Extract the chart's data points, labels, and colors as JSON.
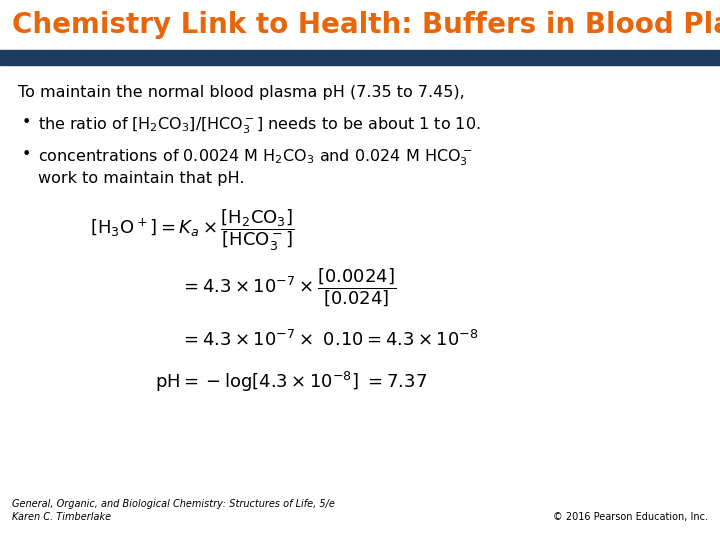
{
  "title": "Chemistry Link to Health: Buffers in Blood Plasma",
  "title_color": "#E8650A",
  "header_bar_color": "#1E3A5F",
  "background_color": "#FFFFFF",
  "footer_left": "General, Organic, and Biological Chemistry: Structures of Life, 5/e\nKaren C. Timberlake",
  "footer_right": "© 2016 Pearson Education, Inc.",
  "footer_fontsize": 7,
  "title_fontsize": 20,
  "body_fontsize": 11.5,
  "equation_fontsize": 12
}
